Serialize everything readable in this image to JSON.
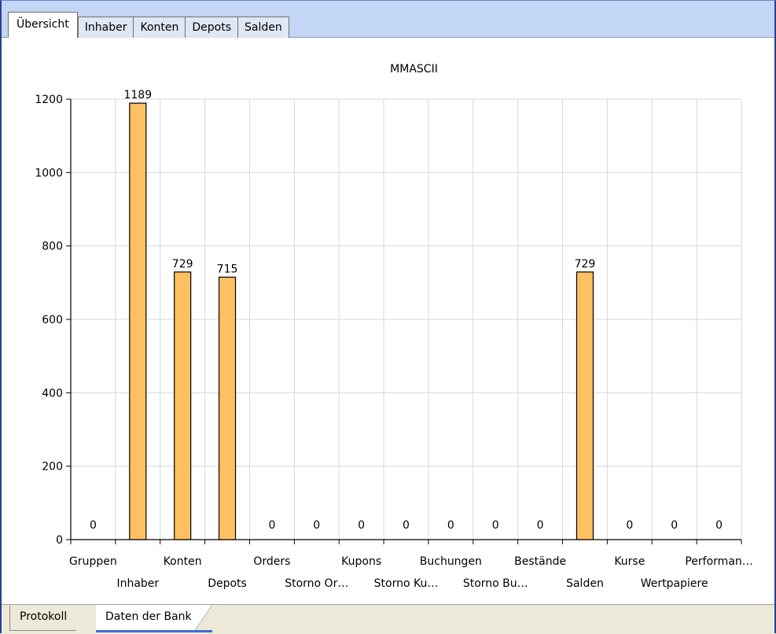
{
  "top_tabs": [
    {
      "label": "Übersicht",
      "active": true
    },
    {
      "label": "Inhaber",
      "active": false
    },
    {
      "label": "Konten",
      "active": false
    },
    {
      "label": "Depots",
      "active": false
    },
    {
      "label": "Salden",
      "active": false
    }
  ],
  "bottom_tabs": [
    {
      "label": "Protokoll",
      "active": false
    },
    {
      "label": "Daten der Bank",
      "active": true
    }
  ],
  "colors": {
    "bar_fill": "#ffc062",
    "bar_stroke": "#000000",
    "grid": "#d8d8d8",
    "tab_strip": "#c3d6f5"
  },
  "chart_data": {
    "type": "bar",
    "title": "MMASCII",
    "xlabel": "",
    "ylabel": "",
    "ylim": [
      0,
      1200
    ],
    "yticks": [
      0,
      200,
      400,
      600,
      800,
      1000,
      1200
    ],
    "grid": true,
    "legend": "none",
    "categories": [
      "Gruppen",
      "Inhaber",
      "Konten",
      "Depots",
      "Orders",
      "Storno Or…",
      "Kupons",
      "Storno Ku…",
      "Buchungen",
      "Storno Bu…",
      "Bestände",
      "Salden",
      "Kurse",
      "Wertpapiere",
      "Performan…"
    ],
    "values": [
      0,
      1189,
      729,
      715,
      0,
      0,
      0,
      0,
      0,
      0,
      0,
      729,
      0,
      0,
      0
    ]
  }
}
